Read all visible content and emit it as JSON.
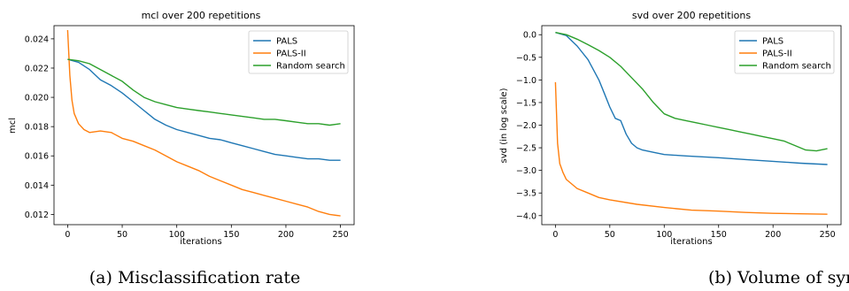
{
  "chart_data": [
    {
      "type": "line",
      "title": "mcl over 200 repetitions",
      "xlabel": "iterations",
      "ylabel": "mcl",
      "xlim": [
        -12.5,
        262.5
      ],
      "ylim": [
        0.0113,
        0.0249
      ],
      "xticks": [
        0,
        50,
        100,
        150,
        200,
        250
      ],
      "xtick_labels": [
        "0",
        "50",
        "100",
        "150",
        "200",
        "250"
      ],
      "yticks": [
        0.012,
        0.014,
        0.016,
        0.018,
        0.02,
        0.022,
        0.024
      ],
      "ytick_labels": [
        "0.012",
        "0.014",
        "0.016",
        "0.018",
        "0.020",
        "0.022",
        "0.024"
      ],
      "grid": false,
      "legend_position": "top-right",
      "caption": "(a) Misclassification rate",
      "series": [
        {
          "name": "PALS",
          "color": "#1f77b4",
          "x": [
            0,
            10,
            20,
            30,
            40,
            50,
            60,
            70,
            80,
            90,
            100,
            110,
            120,
            130,
            140,
            150,
            160,
            170,
            180,
            190,
            200,
            210,
            220,
            230,
            240,
            250
          ],
          "y": [
            0.0226,
            0.0224,
            0.0219,
            0.0212,
            0.0208,
            0.0203,
            0.0197,
            0.0191,
            0.0185,
            0.0181,
            0.0178,
            0.0176,
            0.0174,
            0.0172,
            0.0171,
            0.0169,
            0.0167,
            0.0165,
            0.0163,
            0.0161,
            0.016,
            0.0159,
            0.0158,
            0.0158,
            0.0157,
            0.0157
          ]
        },
        {
          "name": "PALS-II",
          "color": "#ff7f0e",
          "x": [
            0,
            2,
            4,
            6,
            10,
            15,
            20,
            30,
            40,
            50,
            60,
            70,
            80,
            90,
            100,
            110,
            120,
            130,
            140,
            150,
            160,
            170,
            180,
            190,
            200,
            210,
            220,
            230,
            240,
            250
          ],
          "y": [
            0.0246,
            0.0215,
            0.0198,
            0.0189,
            0.0182,
            0.0178,
            0.0176,
            0.0177,
            0.0176,
            0.0172,
            0.017,
            0.0167,
            0.0164,
            0.016,
            0.0156,
            0.0153,
            0.015,
            0.0146,
            0.0143,
            0.014,
            0.0137,
            0.0135,
            0.0133,
            0.0131,
            0.0129,
            0.0127,
            0.0125,
            0.0122,
            0.012,
            0.0119
          ]
        },
        {
          "name": "Random search",
          "color": "#2ca02c",
          "x": [
            0,
            10,
            20,
            30,
            40,
            50,
            60,
            70,
            80,
            90,
            100,
            110,
            120,
            130,
            140,
            150,
            160,
            170,
            180,
            190,
            200,
            210,
            220,
            230,
            240,
            250
          ],
          "y": [
            0.0226,
            0.0225,
            0.0223,
            0.0219,
            0.0215,
            0.0211,
            0.0205,
            0.02,
            0.0197,
            0.0195,
            0.0193,
            0.0192,
            0.0191,
            0.019,
            0.0189,
            0.0188,
            0.0187,
            0.0186,
            0.0185,
            0.0185,
            0.0184,
            0.0183,
            0.0182,
            0.0182,
            0.0181,
            0.0182
          ]
        }
      ]
    },
    {
      "type": "line",
      "title": "svd over 200 repetitions",
      "xlabel": "iterations",
      "ylabel": "svd (in log scale)",
      "xlim": [
        -12.5,
        262.5
      ],
      "ylim": [
        -4.2,
        0.2
      ],
      "xticks": [
        0,
        50,
        100,
        150,
        200,
        250
      ],
      "xtick_labels": [
        "0",
        "50",
        "100",
        "150",
        "200",
        "250"
      ],
      "yticks": [
        -4.0,
        -3.5,
        -3.0,
        -2.5,
        -2.0,
        -1.5,
        -1.0,
        -0.5,
        0.0
      ],
      "ytick_labels": [
        "−4.0",
        "−3.5",
        "−3.0",
        "−2.5",
        "−2.0",
        "−1.5",
        "−1.0",
        "−0.5",
        "0.0"
      ],
      "grid": false,
      "legend_position": "top-right",
      "caption": "(b) Volume of symmetric difference",
      "series": [
        {
          "name": "PALS",
          "color": "#1f77b4",
          "x": [
            0,
            10,
            20,
            30,
            40,
            45,
            50,
            55,
            60,
            65,
            70,
            75,
            80,
            90,
            100,
            120,
            150,
            175,
            200,
            225,
            250
          ],
          "y": [
            0.05,
            -0.02,
            -0.25,
            -0.55,
            -1.0,
            -1.3,
            -1.6,
            -1.85,
            -1.9,
            -2.2,
            -2.4,
            -2.5,
            -2.55,
            -2.6,
            -2.65,
            -2.68,
            -2.72,
            -2.76,
            -2.8,
            -2.84,
            -2.87
          ]
        },
        {
          "name": "PALS-II",
          "color": "#ff7f0e",
          "x": [
            0,
            2,
            4,
            7,
            10,
            15,
            20,
            30,
            40,
            50,
            75,
            100,
            125,
            150,
            175,
            200,
            225,
            250
          ],
          "y": [
            -1.05,
            -2.4,
            -2.85,
            -3.05,
            -3.2,
            -3.3,
            -3.4,
            -3.5,
            -3.6,
            -3.65,
            -3.75,
            -3.82,
            -3.88,
            -3.9,
            -3.93,
            -3.95,
            -3.96,
            -3.97
          ]
        },
        {
          "name": "Random search",
          "color": "#2ca02c",
          "x": [
            0,
            10,
            20,
            30,
            40,
            50,
            60,
            70,
            80,
            90,
            100,
            110,
            120,
            130,
            140,
            150,
            160,
            170,
            180,
            190,
            200,
            210,
            220,
            230,
            240,
            250
          ],
          "y": [
            0.05,
            0.0,
            -0.1,
            -0.22,
            -0.35,
            -0.5,
            -0.7,
            -0.95,
            -1.2,
            -1.5,
            -1.75,
            -1.85,
            -1.9,
            -1.95,
            -2.0,
            -2.05,
            -2.1,
            -2.15,
            -2.2,
            -2.25,
            -2.3,
            -2.35,
            -2.45,
            -2.55,
            -2.57,
            -2.52
          ]
        }
      ]
    }
  ]
}
